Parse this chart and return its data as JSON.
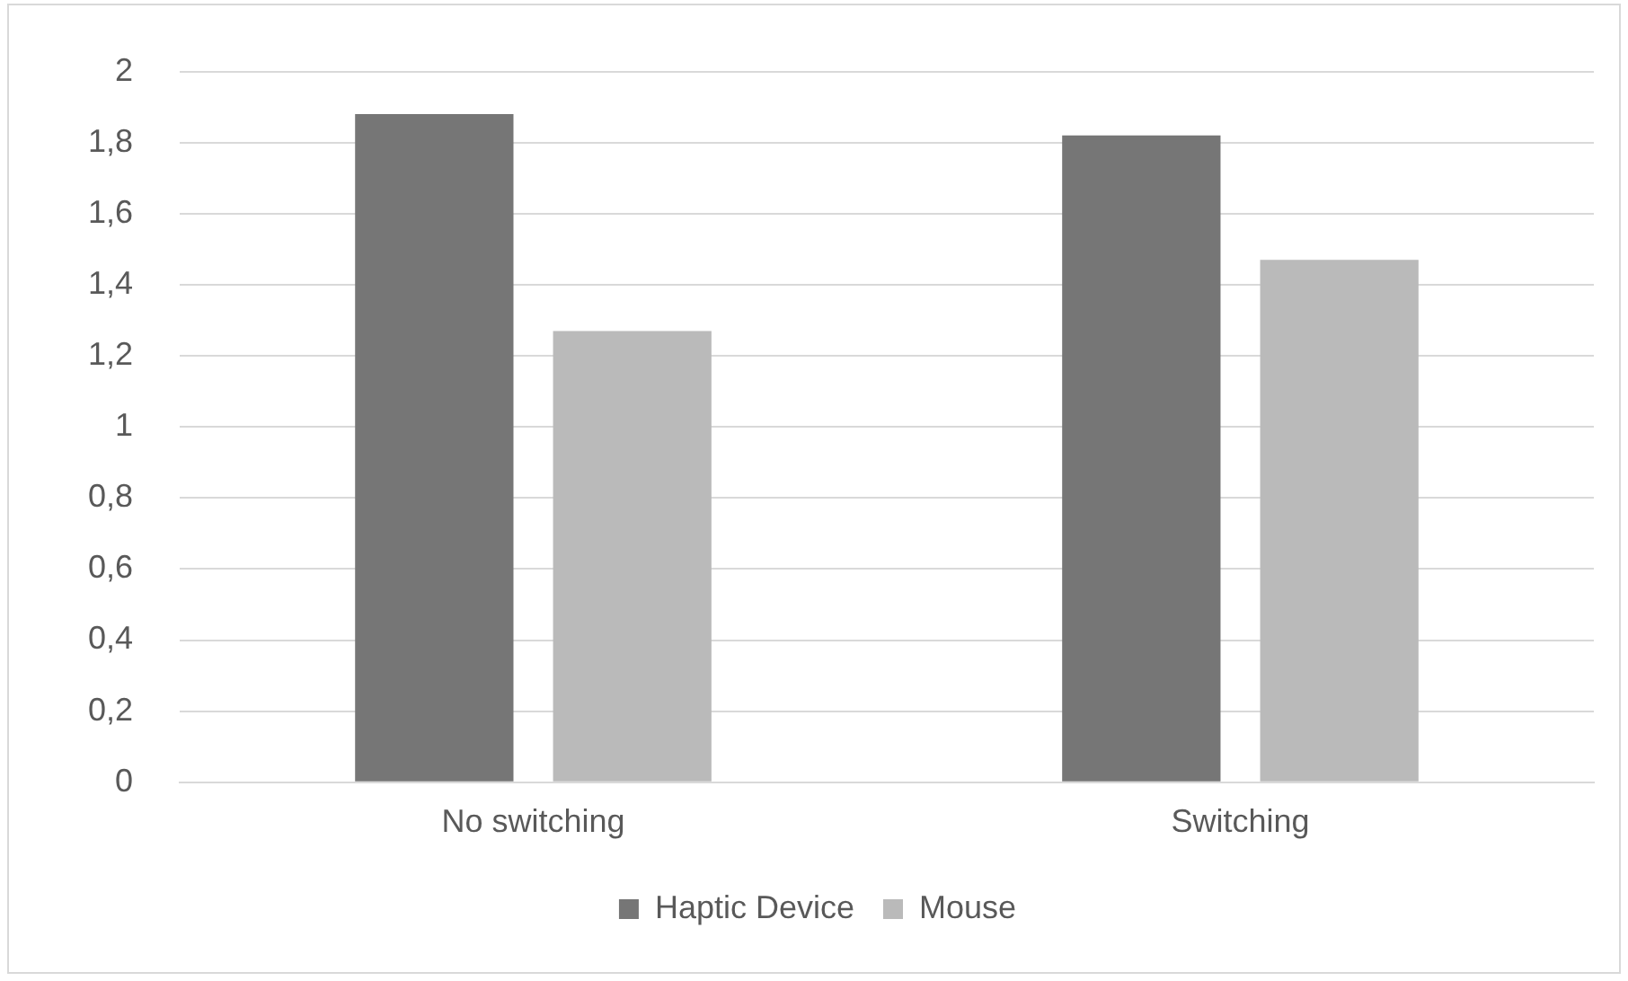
{
  "chart_data": {
    "type": "bar",
    "categories": [
      "No switching",
      "Switching"
    ],
    "series": [
      {
        "name": "Haptic Device",
        "color": "#767676",
        "values": [
          1.88,
          1.82
        ]
      },
      {
        "name": "Mouse",
        "color": "#bababa",
        "values": [
          1.27,
          1.47
        ]
      }
    ],
    "ylim": [
      0,
      2
    ],
    "yticks": [
      0,
      {
        "value": 0.2,
        "label": "0,2"
      },
      {
        "value": 0.4,
        "label": "0,4"
      },
      {
        "value": 0.6,
        "label": "0,6"
      },
      {
        "value": 0.8,
        "label": "0,8"
      },
      1,
      {
        "value": 1.2,
        "label": "1,2"
      },
      {
        "value": 1.4,
        "label": "1,4"
      },
      {
        "value": 1.6,
        "label": "1,6"
      },
      {
        "value": 1.8,
        "label": "1,8"
      },
      2
    ],
    "grid": "y",
    "legend": "bottom"
  }
}
